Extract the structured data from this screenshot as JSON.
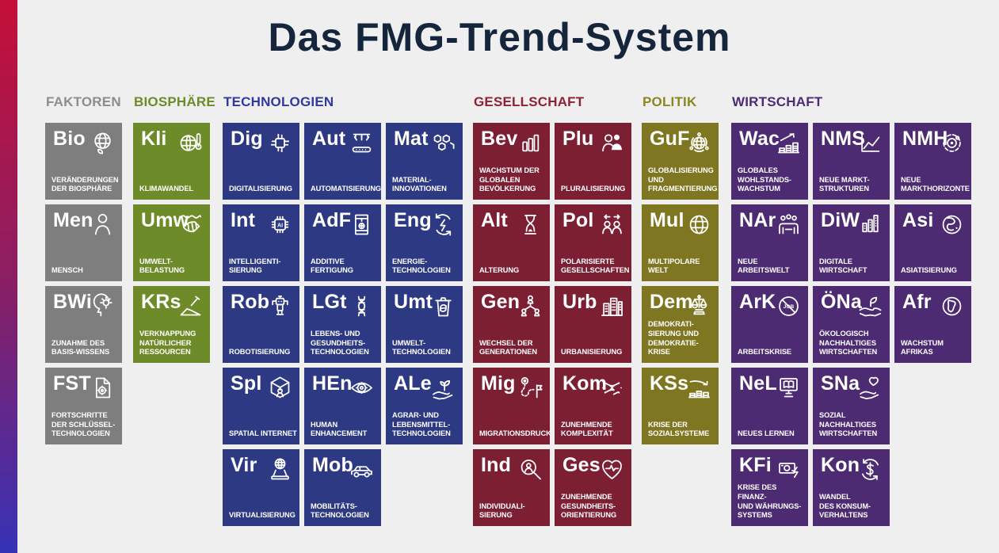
{
  "title": "Das FMG-Trend-System",
  "title_color": "#15263c",
  "background_color": "#f0efef",
  "accent_gradient": [
    "#c41039",
    "#8c1e62",
    "#3632b6"
  ],
  "groups": [
    {
      "id": "faktoren",
      "label": "FAKTOREN",
      "header_color": "#8d8d8d",
      "tile_color": "#7f7e7e",
      "cols": 1,
      "tiles": [
        {
          "symbol": "Bio",
          "icon": "globe-leaf-icon",
          "label": "VERÄNDERUNGEN\nDER BIOSPHÄRE",
          "row": 1,
          "col": 1
        },
        {
          "symbol": "Men",
          "icon": "person-icon",
          "label": "MENSCH",
          "row": 2,
          "col": 1
        },
        {
          "symbol": "BWi",
          "icon": "head-idea-icon",
          "label": "ZUNAHME DES\nBASIS-WISSENS",
          "row": 3,
          "col": 1
        },
        {
          "symbol": "FST",
          "icon": "document-gear-icon",
          "label": "FORTSCHRITTE\nDER SCHLÜSSEL-\nTECHNOLOGIEN",
          "row": 4,
          "col": 1
        }
      ]
    },
    {
      "id": "biosphaere",
      "label": "BIOSPHÄRE",
      "header_color": "#6d8b28",
      "tile_color": "#6d8b28",
      "cols": 1,
      "tiles": [
        {
          "symbol": "Kli",
          "icon": "globe-thermometer-icon",
          "label": "KLIMAWANDEL",
          "row": 1,
          "col": 1
        },
        {
          "symbol": "Umw",
          "icon": "fish-skeleton-icon",
          "label": "UMWELT-\nBELASTUNG",
          "row": 2,
          "col": 1
        },
        {
          "symbol": "KRs",
          "icon": "shovel-mound-icon",
          "label": "VERKNAPPUNG\nNATÜRLICHER\nRESSOURCEN",
          "row": 3,
          "col": 1
        }
      ]
    },
    {
      "id": "technologien",
      "label": "TECHNOLOGIEN",
      "header_color": "#3039a0",
      "tile_color": "#2d3a83",
      "cols": 3,
      "tiles": [
        {
          "symbol": "Dig",
          "icon": "circuit-icon",
          "label": "DIGITALISIERUNG",
          "row": 1,
          "col": 1
        },
        {
          "symbol": "Aut",
          "icon": "conveyor-icon",
          "label": "AUTOMATISIERUNG",
          "row": 1,
          "col": 2
        },
        {
          "symbol": "Mat",
          "icon": "molecule-hex-icon",
          "label": "MATERIAL-\nINNOVATIONEN",
          "row": 1,
          "col": 3
        },
        {
          "symbol": "Int",
          "icon": "ai-chip-icon",
          "label": "INTELLIGENTI-\nSIERUNG",
          "row": 2,
          "col": 1
        },
        {
          "symbol": "AdF",
          "icon": "printer-3d-icon",
          "label": "ADDITIVE\nFERTIGUNG",
          "row": 2,
          "col": 2
        },
        {
          "symbol": "Eng",
          "icon": "energy-cycle-icon",
          "label": "ENERGIE-\nTECHNOLOGIEN",
          "row": 2,
          "col": 3
        },
        {
          "symbol": "Rob",
          "icon": "robot-icon",
          "label": "ROBOTISIERUNG",
          "row": 3,
          "col": 1
        },
        {
          "symbol": "LGt",
          "icon": "dna-icon",
          "label": "LEBENS- UND\nGESUNDHEITS-\nTECHNOLOGIEN",
          "row": 3,
          "col": 2
        },
        {
          "symbol": "Umt",
          "icon": "recycle-bin-icon",
          "label": "UMWELT-\nTECHNOLOGIEN",
          "row": 3,
          "col": 3
        },
        {
          "symbol": "Spl",
          "icon": "vr-cube-icon",
          "label": "SPATIAL INTERNET",
          "row": 4,
          "col": 1
        },
        {
          "symbol": "HEn",
          "icon": "eye-gear-icon",
          "label": "HUMAN\nENHANCEMENT",
          "row": 4,
          "col": 2
        },
        {
          "symbol": "ALe",
          "icon": "sprout-hand-icon",
          "label": "AGRAR- UND\nLEBENSMITTEL-\nTECHNOLOGIEN",
          "row": 4,
          "col": 3
        },
        {
          "symbol": "Vir",
          "icon": "hologram-globe-icon",
          "label": "VIRTUALISIERUNG",
          "row": 5,
          "col": 1
        },
        {
          "symbol": "Mob",
          "icon": "car-icon",
          "label": "MOBILITÄTS-\nTECHNOLOGIEN",
          "row": 5,
          "col": 2
        }
      ]
    },
    {
      "id": "gesellschaft",
      "label": "GESELLSCHAFT",
      "header_color": "#8e2138",
      "tile_color": "#7d1f33",
      "cols": 2,
      "tiles": [
        {
          "symbol": "Bev",
          "icon": "bar-chart-icon",
          "label": "WACHSTUM DER\nGLOBALEN\nBEVÖLKERUNG",
          "row": 1,
          "col": 1
        },
        {
          "symbol": "Plu",
          "icon": "people-pair-icon",
          "label": "PLURALISIERUNG",
          "row": 1,
          "col": 2
        },
        {
          "symbol": "Alt",
          "icon": "hourglass-icon",
          "label": "ALTERUNG",
          "row": 2,
          "col": 1
        },
        {
          "symbol": "Pol",
          "icon": "people-apart-icon",
          "label": "POLARISIERTE\nGESELLSCHAFTEN",
          "row": 2,
          "col": 2
        },
        {
          "symbol": "Gen",
          "icon": "family-tree-icon",
          "label": "WECHSEL DER\nGENERATIONEN",
          "row": 3,
          "col": 1
        },
        {
          "symbol": "Urb",
          "icon": "city-icon",
          "label": "URBANISIERUNG",
          "row": 3,
          "col": 2
        },
        {
          "symbol": "Mig",
          "icon": "route-flag-icon",
          "label": "MIGRATIONSDRUCK",
          "row": 4,
          "col": 1
        },
        {
          "symbol": "Kom",
          "icon": "network-icon",
          "label": "ZUNEHMENDE\nKOMPLEXITÄT",
          "row": 4,
          "col": 2
        },
        {
          "symbol": "Ind",
          "icon": "person-magnifier-icon",
          "label": "INDIVIDUALI-\nSIERUNG",
          "row": 5,
          "col": 1
        },
        {
          "symbol": "Ges",
          "icon": "heart-pulse-icon",
          "label": "ZUNEHMENDE\nGESUNDHEITS-\nORIENTIERUNG",
          "row": 5,
          "col": 2
        }
      ]
    },
    {
      "id": "politik",
      "label": "POLITIK",
      "header_color": "#8c8620",
      "tile_color": "#7f7621",
      "cols": 1,
      "tiles": [
        {
          "symbol": "GuF",
          "icon": "globe-orbit-icon",
          "label": "GLOBALISIERUNG\nUND\nFRAGMENTIERUNG",
          "row": 1,
          "col": 1
        },
        {
          "symbol": "Mul",
          "icon": "globe-grid-icon",
          "label": "MULTIPOLARE\nWELT",
          "row": 2,
          "col": 1
        },
        {
          "symbol": "Dem",
          "icon": "scales-icon",
          "label": "DEMOKRATI-\nSIERUNG UND\nDEMOKRATIE-KRISE",
          "row": 3,
          "col": 1
        },
        {
          "symbol": "KSs",
          "icon": "coins-down-arrow-icon",
          "label": "KRISE DER\nSOZIALSYSTEME",
          "row": 4,
          "col": 1
        }
      ]
    },
    {
      "id": "wirtschaft",
      "label": "WIRTSCHAFT",
      "header_color": "#4c2b77",
      "tile_color": "#4c2b72",
      "cols": 3,
      "tiles": [
        {
          "symbol": "Wac",
          "icon": "coins-up-arrow-icon",
          "label": "GLOBALES\nWOHLSTANDS-\nWACHSTUM",
          "row": 1,
          "col": 1
        },
        {
          "symbol": "NMS",
          "icon": "line-chart-icon",
          "label": "NEUE MARKT-\nSTRUKTUREN",
          "row": 1,
          "col": 2
        },
        {
          "symbol": "NMH",
          "icon": "radar-target-icon",
          "label": "NEUE\nMARKTHORIZONTE",
          "row": 1,
          "col": 3
        },
        {
          "symbol": "NAr",
          "icon": "meeting-table-icon",
          "label": "NEUE ARBEITSWELT",
          "row": 2,
          "col": 1
        },
        {
          "symbol": "DiW",
          "icon": "data-columns-icon",
          "label": "DIGITALE\nWIRTSCHAFT",
          "row": 2,
          "col": 2
        },
        {
          "symbol": "Asi",
          "icon": "globe-asia-icon",
          "label": "ASIATISIERUNG",
          "row": 2,
          "col": 3
        },
        {
          "symbol": "ArK",
          "icon": "no-job-icon",
          "label": "ARBEITSKRISE",
          "row": 3,
          "col": 1
        },
        {
          "symbol": "ÖNa",
          "icon": "leaf-hands-icon",
          "label": "ÖKOLOGISCH\nNACHHALTIGES\nWIRTSCHAFTEN",
          "row": 3,
          "col": 2
        },
        {
          "symbol": "Afr",
          "icon": "globe-africa-icon",
          "label": "WACHSTUM\nAFRIKAS",
          "row": 3,
          "col": 3
        },
        {
          "symbol": "NeL",
          "icon": "monitor-book-icon",
          "label": "NEUES LERNEN",
          "row": 4,
          "col": 1
        },
        {
          "symbol": "SNa",
          "icon": "heart-hand-icon",
          "label": "SOZIAL\nNACHHALTIGES\nWIRTSCHAFTEN",
          "row": 4,
          "col": 2
        },
        {
          "symbol": "KFi",
          "icon": "banknote-bolt-icon",
          "label": "KRISE DES FINANZ-\nUND WÄHRUNGS-\nSYSTEMS",
          "row": 5,
          "col": 1
        },
        {
          "symbol": "Kon",
          "icon": "dollar-cycle-icon",
          "label": "WANDEL\nDES KONSUM-\nVERHALTENS",
          "row": 5,
          "col": 2
        }
      ]
    }
  ]
}
